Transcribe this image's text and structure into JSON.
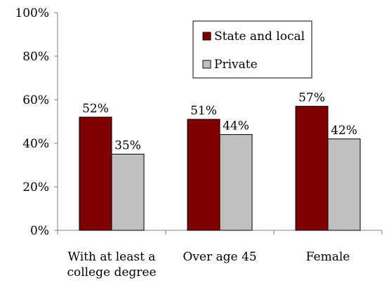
{
  "chart_data": {
    "type": "bar",
    "categories": [
      [
        "With at least a",
        "college degree"
      ],
      [
        "Over age 45"
      ],
      [
        "Female"
      ]
    ],
    "series": [
      {
        "name": "State and local",
        "color": "#800000",
        "values": [
          52,
          51,
          57
        ]
      },
      {
        "name": "Private",
        "color": "#C0C0C0",
        "values": [
          35,
          44,
          42
        ]
      }
    ],
    "data_labels": [
      [
        "52%",
        "51%",
        "57%"
      ],
      [
        "35%",
        "44%",
        "42%"
      ]
    ],
    "yticks": [
      "0%",
      "20%",
      "40%",
      "60%",
      "80%",
      "100%"
    ],
    "ylim": [
      0,
      100
    ],
    "grid": false,
    "legend_position": "top-right"
  }
}
